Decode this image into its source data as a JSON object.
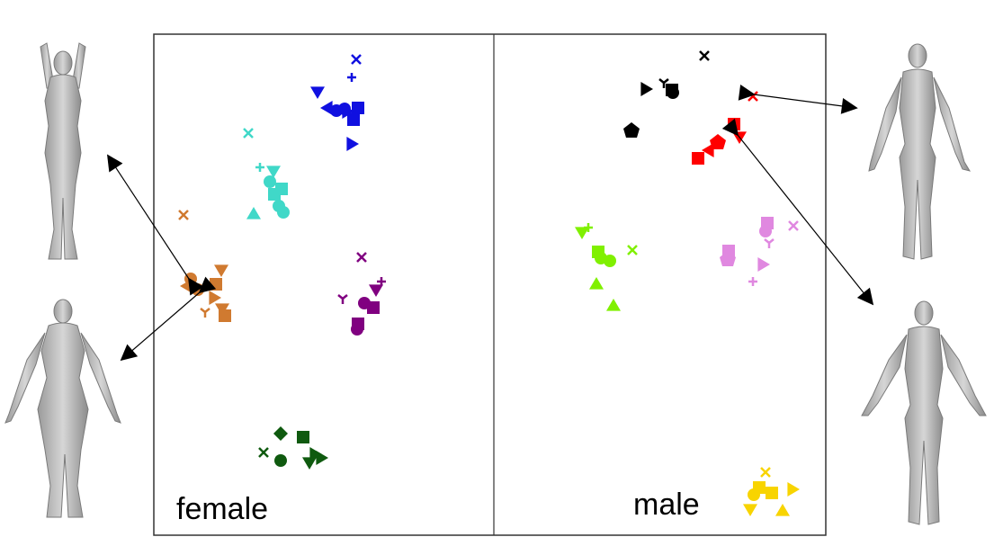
{
  "labels": {
    "left": "female",
    "right": "male"
  },
  "chart_data": {
    "type": "scatter",
    "panels": [
      {
        "name": "female",
        "clusters": [
          {
            "color": "#1010e0",
            "points": [
              [
                "x",
                396,
                66
              ],
              [
                "plus",
                391,
                86
              ],
              [
                "tri-down",
                353,
                102
              ],
              [
                "square",
                398,
                120
              ],
              [
                "circle",
                383,
                121
              ],
              [
                "circle",
                374,
                123
              ],
              [
                "tri-right",
                386,
                124
              ],
              [
                "tri-left",
                364,
                120
              ],
              [
                "square",
                393,
                133
              ],
              [
                "tri-right",
                391,
                160
              ]
            ]
          },
          {
            "color": "#40d8c8",
            "points": [
              [
                "x",
                276,
                148
              ],
              [
                "plus",
                289,
                186
              ],
              [
                "tri-down",
                304,
                190
              ],
              [
                "circle",
                300,
                202
              ],
              [
                "square",
                313,
                210
              ],
              [
                "square",
                305,
                216
              ],
              [
                "circle",
                315,
                236
              ],
              [
                "tri-up",
                282,
                238
              ],
              [
                "circle",
                310,
                229
              ]
            ]
          },
          {
            "color": "#d07a30",
            "points": [
              [
                "x",
                204,
                239
              ],
              [
                "circle",
                212,
                310
              ],
              [
                "tri-left",
                208,
                318
              ],
              [
                "tri-down",
                246,
                300
              ],
              [
                "circle",
                220,
                322
              ],
              [
                "square",
                240,
                316
              ],
              [
                "tri-right",
                238,
                331
              ],
              [
                "tri-down",
                247,
                343
              ],
              [
                "square",
                250,
                351
              ],
              [
                "tri3",
                228,
                347
              ]
            ]
          },
          {
            "color": "#800080",
            "points": [
              [
                "x",
                402,
                286
              ],
              [
                "plus",
                424,
                313
              ],
              [
                "tri-down",
                418,
                322
              ],
              [
                "square",
                415,
                342
              ],
              [
                "circle",
                405,
                337
              ],
              [
                "tri3",
                381,
                332
              ],
              [
                "square",
                398,
                360
              ],
              [
                "circle",
                397,
                366
              ]
            ]
          },
          {
            "color": "#0f5a0f",
            "points": [
              [
                "diamond",
                312,
                482
              ],
              [
                "square",
                337,
                486
              ],
              [
                "circle",
                312,
                512
              ],
              [
                "x",
                293,
                503
              ],
              [
                "tri-right",
                357,
                509
              ],
              [
                "tri-down",
                344,
                514
              ],
              [
                "tri-right",
                350,
                505
              ]
            ]
          }
        ]
      },
      {
        "name": "male",
        "clusters": [
          {
            "color": "#000000",
            "points": [
              [
                "x",
                783,
                62
              ],
              [
                "tri3",
                738,
                92
              ],
              [
                "tri-right",
                718,
                99
              ],
              [
                "square",
                747,
                100
              ],
              [
                "circle",
                748,
                103
              ],
              [
                "pentagon",
                702,
                145
              ]
            ]
          },
          {
            "color": "#ff0000",
            "points": [
              [
                "x",
                837,
                107
              ],
              [
                "square",
                816,
                138
              ],
              [
                "tri-down",
                822,
                152
              ],
              [
                "pentagon",
                798,
                158
              ],
              [
                "tri-left",
                788,
                167
              ],
              [
                "square",
                776,
                176
              ]
            ]
          },
          {
            "color": "#80f000",
            "points": [
              [
                "plus",
                654,
                253
              ],
              [
                "tri-down",
                647,
                258
              ],
              [
                "x",
                703,
                278
              ],
              [
                "square",
                665,
                280
              ],
              [
                "circle",
                678,
                290
              ],
              [
                "circle",
                668,
                287
              ],
              [
                "tri-up",
                663,
                316
              ],
              [
                "tri-up",
                682,
                340
              ]
            ]
          },
          {
            "color": "#e088e0",
            "points": [
              [
                "x",
                882,
                251
              ],
              [
                "square",
                853,
                248
              ],
              [
                "circle",
                851,
                257
              ],
              [
                "square",
                810,
                279
              ],
              [
                "pentagon",
                809,
                288
              ],
              [
                "tri-right",
                848,
                294
              ],
              [
                "plus",
                837,
                313
              ],
              [
                "tri3",
                855,
                270
              ]
            ]
          },
          {
            "color": "#f8d400",
            "points": [
              [
                "x",
                851,
                525
              ],
              [
                "square",
                844,
                542
              ],
              [
                "circle",
                838,
                550
              ],
              [
                "tri-right",
                881,
                544
              ],
              [
                "tri-down",
                834,
                566
              ],
              [
                "tri-up",
                870,
                568
              ],
              [
                "square",
                858,
                548
              ]
            ]
          }
        ]
      }
    ]
  }
}
